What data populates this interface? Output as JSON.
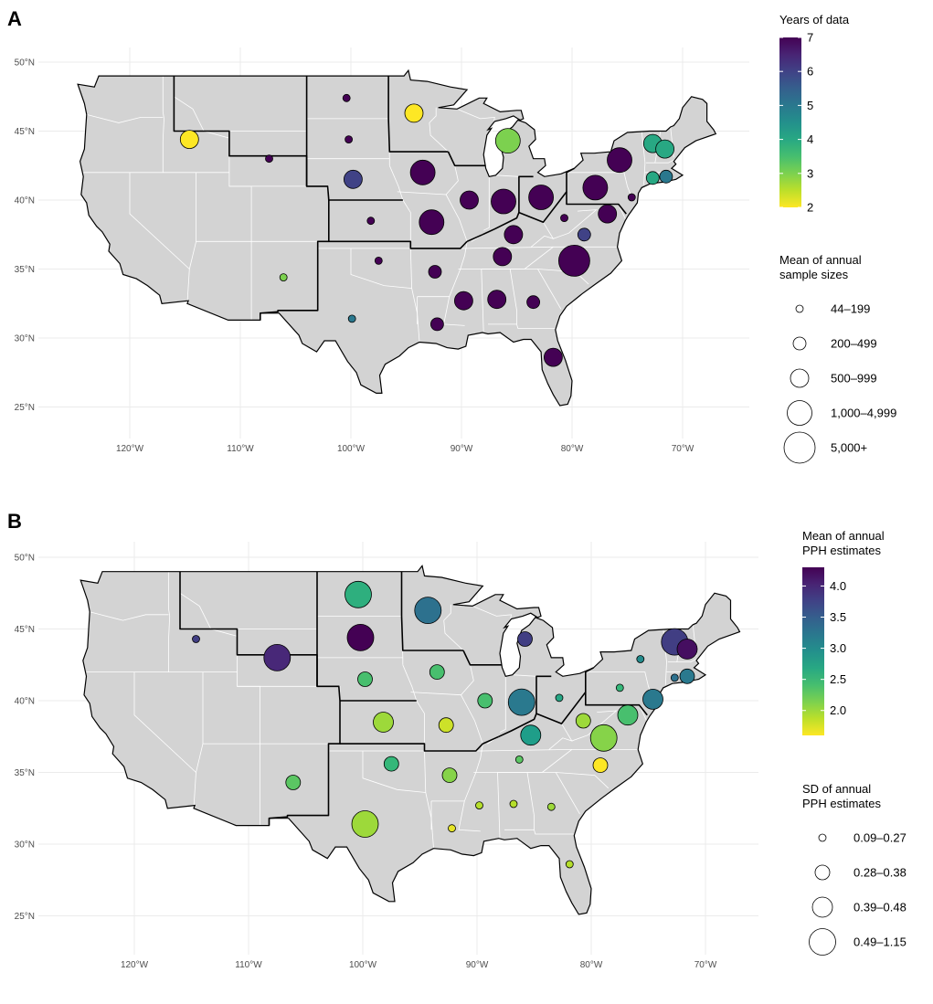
{
  "panels": [
    {
      "label": "A",
      "lat_ticks": [
        "25°N",
        "30°N",
        "35°N",
        "40°N",
        "45°N",
        "50°N"
      ],
      "lon_ticks": [
        "120°W",
        "110°W",
        "100°W",
        "90°W",
        "80°W",
        "70°W"
      ],
      "color_legend": {
        "title_lines": [
          "Years of data"
        ],
        "ticks": [
          "2",
          "3",
          "4",
          "5",
          "6",
          "7"
        ],
        "range": [
          2,
          7
        ],
        "palette": [
          "#fde725",
          "#5ec962",
          "#21918c",
          "#3b528b",
          "#440154"
        ]
      },
      "size_legend": {
        "title_lines": [
          "Mean of annual",
          "sample sizes"
        ],
        "labels": [
          "44–199",
          "200–499",
          "500–999",
          "1,000–4,999",
          "5,000+"
        ]
      }
    },
    {
      "label": "B",
      "lat_ticks": [
        "25°N",
        "30°N",
        "35°N",
        "40°N",
        "45°N",
        "50°N"
      ],
      "lon_ticks": [
        "120°W",
        "110°W",
        "100°W",
        "90°W",
        "80°W",
        "70°W"
      ],
      "color_legend": {
        "title_lines": [
          "Mean of annual",
          "PPH estimates"
        ],
        "ticks": [
          "2.0",
          "2.5",
          "3.0",
          "3.5",
          "4.0"
        ],
        "range": [
          1.6,
          4.3
        ],
        "palette": [
          "#fde725",
          "#5ec962",
          "#21918c",
          "#3b528b",
          "#440154"
        ]
      },
      "size_legend": {
        "title_lines": [
          "SD of annual",
          "PPH estimates"
        ],
        "labels": [
          "0.09–0.27",
          "0.28–0.38",
          "0.39–0.48",
          "0.49–1.15"
        ]
      }
    }
  ],
  "map_points_A": [
    {
      "lon": -114.6,
      "lat": 44.4,
      "years": 2,
      "size_class": 3
    },
    {
      "lon": -107.4,
      "lat": 43.0,
      "years": 7,
      "size_class": 1
    },
    {
      "lon": -100.4,
      "lat": 47.4,
      "years": 7,
      "size_class": 1
    },
    {
      "lon": -100.2,
      "lat": 44.4,
      "years": 7,
      "size_class": 1
    },
    {
      "lon": -99.8,
      "lat": 41.5,
      "years": 6,
      "size_class": 3
    },
    {
      "lon": -98.2,
      "lat": 38.5,
      "years": 7,
      "size_class": 1
    },
    {
      "lon": -94.3,
      "lat": 46.3,
      "years": 2,
      "size_class": 3
    },
    {
      "lon": -93.5,
      "lat": 42.0,
      "years": 7,
      "size_class": 4
    },
    {
      "lon": -92.7,
      "lat": 38.4,
      "years": 7,
      "size_class": 4
    },
    {
      "lon": -89.3,
      "lat": 40.0,
      "years": 7,
      "size_class": 3
    },
    {
      "lon": -86.2,
      "lat": 39.9,
      "years": 7,
      "size_class": 4
    },
    {
      "lon": -85.8,
      "lat": 44.3,
      "years": 3,
      "size_class": 4
    },
    {
      "lon": -82.8,
      "lat": 40.2,
      "years": 7,
      "size_class": 4
    },
    {
      "lon": -85.3,
      "lat": 37.5,
      "years": 7,
      "size_class": 3
    },
    {
      "lon": -86.3,
      "lat": 35.9,
      "years": 7,
      "size_class": 3
    },
    {
      "lon": -80.7,
      "lat": 38.7,
      "years": 7,
      "size_class": 1
    },
    {
      "lon": -78.9,
      "lat": 37.5,
      "years": 6,
      "size_class": 2
    },
    {
      "lon": -79.8,
      "lat": 35.6,
      "years": 7,
      "size_class": 5
    },
    {
      "lon": -77.9,
      "lat": 40.9,
      "years": 7,
      "size_class": 4
    },
    {
      "lon": -75.7,
      "lat": 42.9,
      "years": 7,
      "size_class": 4
    },
    {
      "lon": -76.8,
      "lat": 39.0,
      "years": 7,
      "size_class": 3
    },
    {
      "lon": -74.6,
      "lat": 40.2,
      "years": 7,
      "size_class": 1
    },
    {
      "lon": -72.7,
      "lat": 44.1,
      "years": 4,
      "size_class": 3
    },
    {
      "lon": -71.6,
      "lat": 43.7,
      "years": 4,
      "size_class": 3
    },
    {
      "lon": -72.7,
      "lat": 41.6,
      "years": 4,
      "size_class": 2
    },
    {
      "lon": -71.5,
      "lat": 41.7,
      "years": 5,
      "size_class": 2
    },
    {
      "lon": -97.5,
      "lat": 35.6,
      "years": 7,
      "size_class": 1
    },
    {
      "lon": -92.4,
      "lat": 34.8,
      "years": 7,
      "size_class": 2
    },
    {
      "lon": -106.1,
      "lat": 34.4,
      "years": 3,
      "size_class": 1
    },
    {
      "lon": -99.9,
      "lat": 31.4,
      "years": 5,
      "size_class": 1
    },
    {
      "lon": -89.8,
      "lat": 32.7,
      "years": 7,
      "size_class": 3
    },
    {
      "lon": -86.8,
      "lat": 32.8,
      "years": 7,
      "size_class": 3
    },
    {
      "lon": -83.5,
      "lat": 32.6,
      "years": 7,
      "size_class": 2
    },
    {
      "lon": -92.2,
      "lat": 31.0,
      "years": 7,
      "size_class": 2
    },
    {
      "lon": -81.7,
      "lat": 28.6,
      "years": 7,
      "size_class": 3
    }
  ],
  "map_points_B": [
    {
      "lon": -114.6,
      "lat": 44.3,
      "mean": 3.8,
      "sd_class": 1
    },
    {
      "lon": -107.5,
      "lat": 43.0,
      "mean": 4.0,
      "sd_class": 4
    },
    {
      "lon": -100.4,
      "lat": 47.4,
      "mean": 2.6,
      "sd_class": 4
    },
    {
      "lon": -100.2,
      "lat": 44.4,
      "mean": 4.3,
      "sd_class": 4
    },
    {
      "lon": -99.8,
      "lat": 41.5,
      "mean": 2.4,
      "sd_class": 2
    },
    {
      "lon": -98.2,
      "lat": 38.5,
      "mean": 2.0,
      "sd_class": 3
    },
    {
      "lon": -94.3,
      "lat": 46.3,
      "mean": 3.3,
      "sd_class": 4
    },
    {
      "lon": -93.5,
      "lat": 42.0,
      "mean": 2.4,
      "sd_class": 2
    },
    {
      "lon": -92.7,
      "lat": 38.3,
      "mean": 1.8,
      "sd_class": 2
    },
    {
      "lon": -89.3,
      "lat": 40.0,
      "mean": 2.4,
      "sd_class": 2
    },
    {
      "lon": -86.1,
      "lat": 39.9,
      "mean": 3.2,
      "sd_class": 4
    },
    {
      "lon": -85.8,
      "lat": 44.3,
      "mean": 3.8,
      "sd_class": 2
    },
    {
      "lon": -82.8,
      "lat": 40.2,
      "mean": 2.7,
      "sd_class": 1
    },
    {
      "lon": -85.3,
      "lat": 37.6,
      "mean": 2.8,
      "sd_class": 3
    },
    {
      "lon": -86.3,
      "lat": 35.9,
      "mean": 2.3,
      "sd_class": 1
    },
    {
      "lon": -80.7,
      "lat": 38.6,
      "mean": 2.0,
      "sd_class": 2
    },
    {
      "lon": -78.9,
      "lat": 37.4,
      "mean": 2.1,
      "sd_class": 4
    },
    {
      "lon": -79.2,
      "lat": 35.5,
      "mean": 1.6,
      "sd_class": 2
    },
    {
      "lon": -77.5,
      "lat": 40.9,
      "mean": 2.5,
      "sd_class": 1
    },
    {
      "lon": -75.7,
      "lat": 42.9,
      "mean": 3.0,
      "sd_class": 1
    },
    {
      "lon": -76.8,
      "lat": 39.0,
      "mean": 2.4,
      "sd_class": 3
    },
    {
      "lon": -74.6,
      "lat": 40.1,
      "mean": 3.2,
      "sd_class": 3
    },
    {
      "lon": -72.7,
      "lat": 44.1,
      "mean": 3.8,
      "sd_class": 4
    },
    {
      "lon": -71.6,
      "lat": 43.6,
      "mean": 4.2,
      "sd_class": 3
    },
    {
      "lon": -72.7,
      "lat": 41.6,
      "mean": 3.3,
      "sd_class": 1
    },
    {
      "lon": -71.6,
      "lat": 41.7,
      "mean": 3.2,
      "sd_class": 2
    },
    {
      "lon": -97.5,
      "lat": 35.6,
      "mean": 2.5,
      "sd_class": 2
    },
    {
      "lon": -92.4,
      "lat": 34.8,
      "mean": 2.1,
      "sd_class": 2
    },
    {
      "lon": -106.1,
      "lat": 34.3,
      "mean": 2.3,
      "sd_class": 2
    },
    {
      "lon": -99.8,
      "lat": 31.4,
      "mean": 2.0,
      "sd_class": 4
    },
    {
      "lon": -89.8,
      "lat": 32.7,
      "mean": 1.9,
      "sd_class": 1
    },
    {
      "lon": -86.8,
      "lat": 32.8,
      "mean": 1.9,
      "sd_class": 1
    },
    {
      "lon": -83.5,
      "lat": 32.6,
      "mean": 2.0,
      "sd_class": 1
    },
    {
      "lon": -92.2,
      "lat": 31.1,
      "mean": 1.7,
      "sd_class": 1
    },
    {
      "lon": -81.9,
      "lat": 28.6,
      "mean": 1.9,
      "sd_class": 1
    }
  ]
}
